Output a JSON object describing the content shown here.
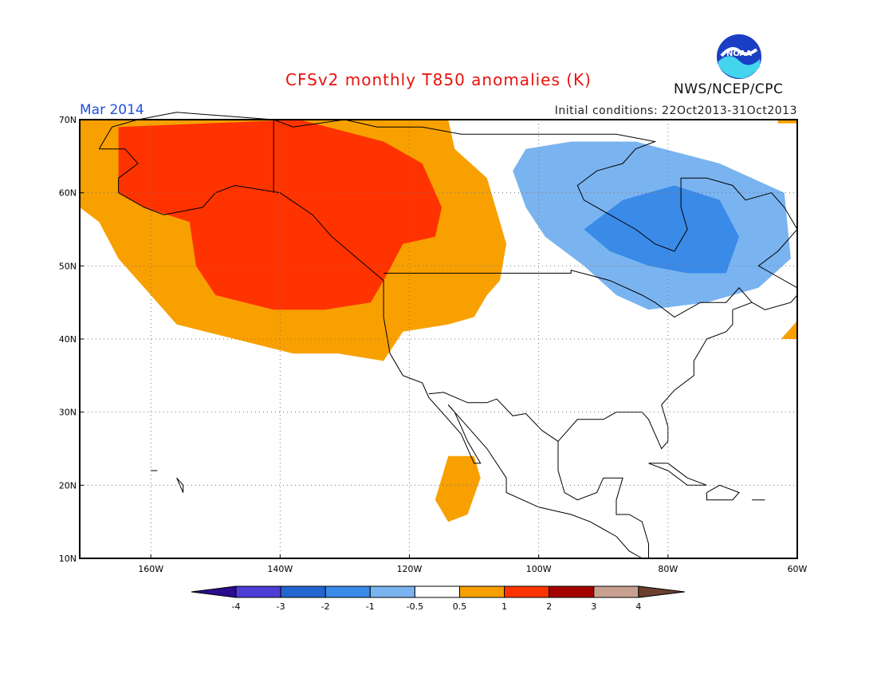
{
  "title": "CFSv2 monthly T850 anomalies (K)",
  "month_label": "Mar 2014",
  "initial_conditions": "Initial conditions: 22Oct2013-31Oct2013",
  "agency": "NWS/NCEP/CPC",
  "logo_text": "NOAA",
  "map": {
    "lon_range": [
      -171,
      -60
    ],
    "lat_range": [
      10,
      70
    ],
    "lon_ticks": [
      {
        "lon": -160,
        "label": "160W"
      },
      {
        "lon": -140,
        "label": "140W"
      },
      {
        "lon": -120,
        "label": "120W"
      },
      {
        "lon": -100,
        "label": "100W"
      },
      {
        "lon": -80,
        "label": "80W"
      },
      {
        "lon": -60,
        "label": "60W"
      }
    ],
    "lat_ticks": [
      {
        "lat": 70,
        "label": "70N"
      },
      {
        "lat": 60,
        "label": "60N"
      },
      {
        "lat": 50,
        "label": "50N"
      },
      {
        "lat": 40,
        "label": "40N"
      },
      {
        "lat": 30,
        "label": "30N"
      },
      {
        "lat": 20,
        "label": "20N"
      },
      {
        "lat": 10,
        "label": "10N"
      }
    ],
    "regions": [
      {
        "level": "0.5 to 1",
        "color": "#f7a000",
        "lonlat": [
          [
            -171,
            70
          ],
          [
            -114,
            70
          ],
          [
            -113,
            66
          ],
          [
            -108,
            62
          ],
          [
            -105,
            53
          ],
          [
            -106,
            48
          ],
          [
            -108,
            46
          ],
          [
            -110,
            43
          ],
          [
            -114,
            42
          ],
          [
            -121,
            41
          ],
          [
            -124,
            37
          ],
          [
            -131,
            38
          ],
          [
            -138,
            38
          ],
          [
            -147,
            40
          ],
          [
            -156,
            42
          ],
          [
            -160,
            46
          ],
          [
            -165,
            51
          ],
          [
            -168,
            56
          ],
          [
            -171,
            58
          ]
        ]
      },
      {
        "level": "0.5 to 1",
        "color": "#f7a000",
        "lonlat": [
          [
            -114,
            24
          ],
          [
            -110,
            24
          ],
          [
            -109,
            21
          ],
          [
            -111,
            16
          ],
          [
            -114,
            15
          ],
          [
            -116,
            18
          ]
        ]
      },
      {
        "level": "0.5 to 1",
        "color": "#f7a000",
        "lonlat": [
          [
            -60,
            42.5
          ],
          [
            -60,
            40
          ],
          [
            -62.5,
            40
          ]
        ]
      },
      {
        "level": "0.5 to 1",
        "color": "#f7a000",
        "lonlat": [
          [
            -60,
            70
          ],
          [
            -63,
            70
          ],
          [
            -63,
            69.5
          ],
          [
            -60,
            69.5
          ]
        ]
      },
      {
        "level": "1 to 2",
        "color": "#ff3300",
        "lonlat": [
          [
            -165,
            69
          ],
          [
            -137,
            70
          ],
          [
            -124,
            67
          ],
          [
            -118,
            64
          ],
          [
            -115,
            58
          ],
          [
            -116,
            54
          ],
          [
            -121,
            53
          ],
          [
            -124,
            48
          ],
          [
            -126,
            45
          ],
          [
            -133,
            44
          ],
          [
            -141,
            44
          ],
          [
            -150,
            46
          ],
          [
            -153,
            50
          ],
          [
            -154,
            56
          ],
          [
            -161,
            58
          ],
          [
            -165,
            60
          ]
        ]
      },
      {
        "level": "-1 to -0.5",
        "color": "#7ab4f0",
        "lonlat": [
          [
            -95,
            67
          ],
          [
            -85,
            67
          ],
          [
            -72,
            64
          ],
          [
            -62,
            60
          ],
          [
            -61,
            51
          ],
          [
            -66,
            47
          ],
          [
            -74,
            45
          ],
          [
            -83,
            44
          ],
          [
            -88,
            46
          ],
          [
            -93,
            50
          ],
          [
            -99,
            54
          ],
          [
            -102,
            58
          ],
          [
            -104,
            63
          ],
          [
            -102,
            66
          ]
        ]
      },
      {
        "level": "-2 to -1",
        "color": "#3a8ae8",
        "lonlat": [
          [
            -87,
            59
          ],
          [
            -79,
            61
          ],
          [
            -72,
            59
          ],
          [
            -69,
            54
          ],
          [
            -71,
            49
          ],
          [
            -77,
            49
          ],
          [
            -83,
            50
          ],
          [
            -89,
            52
          ],
          [
            -93,
            55
          ]
        ]
      }
    ],
    "legend": {
      "labels": [
        "-4",
        "-3",
        "-2",
        "-1",
        "-0.5",
        "0.5",
        "1",
        "2",
        "3",
        "4"
      ],
      "colors": [
        "#2a0c8f",
        "#4e3dd6",
        "#2266d0",
        "#3a8ae8",
        "#7ab4f0",
        "#ffffff",
        "#f7a000",
        "#ff3300",
        "#a50000",
        "#c8a090",
        "#6b4030"
      ]
    }
  }
}
